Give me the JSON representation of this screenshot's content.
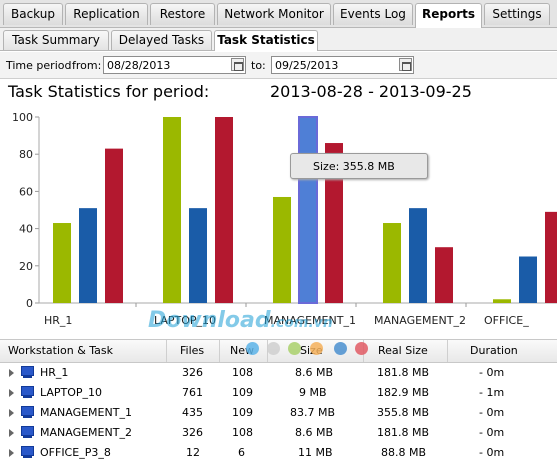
{
  "tabs": [
    "Backup",
    "Replication",
    "Restore",
    "Network Monitor",
    "Events Log",
    "Reports",
    "Settings"
  ],
  "subtabs": [
    "Task Summary",
    "Delayed Tasks",
    "Task Statistics"
  ],
  "period": {
    "label": "Time period",
    "from_label": "from:",
    "from": "08/28/2013",
    "to_label": "to:",
    "to": "09/25/2013"
  },
  "chart_heading": {
    "title": "Task Statistics for period:",
    "range": "2013-08-28 - 2013-09-25"
  },
  "tooltip": "Size: 355.8 MB",
  "watermark": {
    "main": "Download",
    "suffix": ".com.vn"
  },
  "colors": {
    "green": "#9bb800",
    "blue": "#1a5ca8",
    "red": "#b3182f",
    "highlight": "#4f7fd6"
  },
  "chart_data": {
    "type": "bar",
    "categories": [
      "HR_1",
      "LAPTOP_10",
      "MANAGEMENT_1",
      "MANAGEMENT_2",
      "OFFICE_"
    ],
    "ylim": [
      0,
      100
    ],
    "yticks": [
      0,
      20,
      40,
      60,
      80,
      100
    ],
    "series": [
      {
        "values": [
          43,
          100,
          57,
          43,
          2
        ]
      },
      {
        "values": [
          51,
          51,
          100,
          51,
          25
        ]
      },
      {
        "values": [
          83,
          100,
          86,
          30,
          49
        ]
      }
    ],
    "highlighted": {
      "category": "MANAGEMENT_1",
      "series_index": 1
    }
  },
  "table": {
    "headers": [
      "Workstation & Task",
      "Files",
      "New",
      "Size",
      "Real Size",
      "Duration"
    ],
    "rows": [
      [
        "HR_1",
        "326",
        "108",
        "8.6 MB",
        "181.8 MB",
        "- 0m"
      ],
      [
        "LAPTOP_10",
        "761",
        "109",
        "9 MB",
        "182.9 MB",
        "- 1m"
      ],
      [
        "MANAGEMENT_1",
        "435",
        "109",
        "83.7 MB",
        "355.8 MB",
        "- 0m"
      ],
      [
        "MANAGEMENT_2",
        "326",
        "108",
        "8.6 MB",
        "181.8 MB",
        "- 0m"
      ],
      [
        "OFFICE_P3_8",
        "12",
        "6",
        "11 MB",
        "88.8 MB",
        "- 0m"
      ]
    ]
  }
}
